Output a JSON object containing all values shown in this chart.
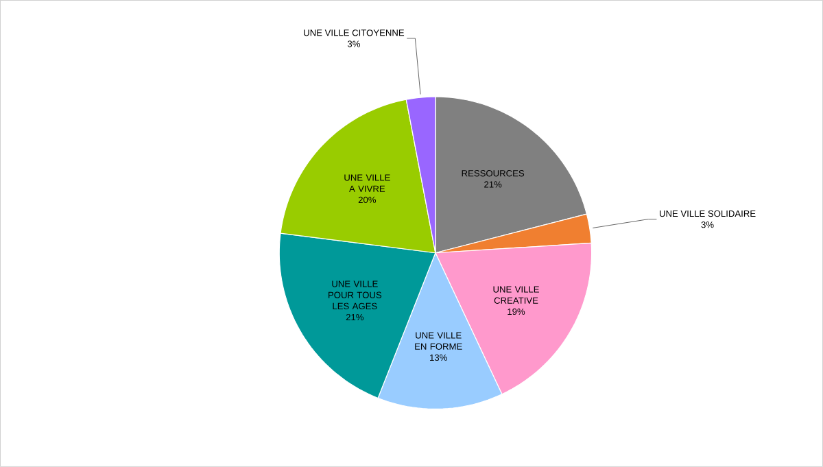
{
  "chart_data": {
    "type": "pie",
    "categories": [
      "RESSOURCES",
      "UNE VILLE SOLIDAIRE",
      "UNE VILLE CREATIVE",
      "UNE VILLE EN FORME",
      "UNE VILLE POUR TOUS LES AGES",
      "UNE VILLE A VIVRE",
      "UNE VILLE CITOYENNE"
    ],
    "values": [
      21,
      3,
      19,
      13,
      21,
      20,
      3
    ],
    "value_labels": [
      "21%",
      "3%",
      "19%",
      "13%",
      "21%",
      "20%",
      "3%"
    ],
    "colors": [
      "#808080",
      "#f07f30",
      "#ff99cc",
      "#99ccff",
      "#009999",
      "#99cc00",
      "#9966ff"
    ]
  }
}
